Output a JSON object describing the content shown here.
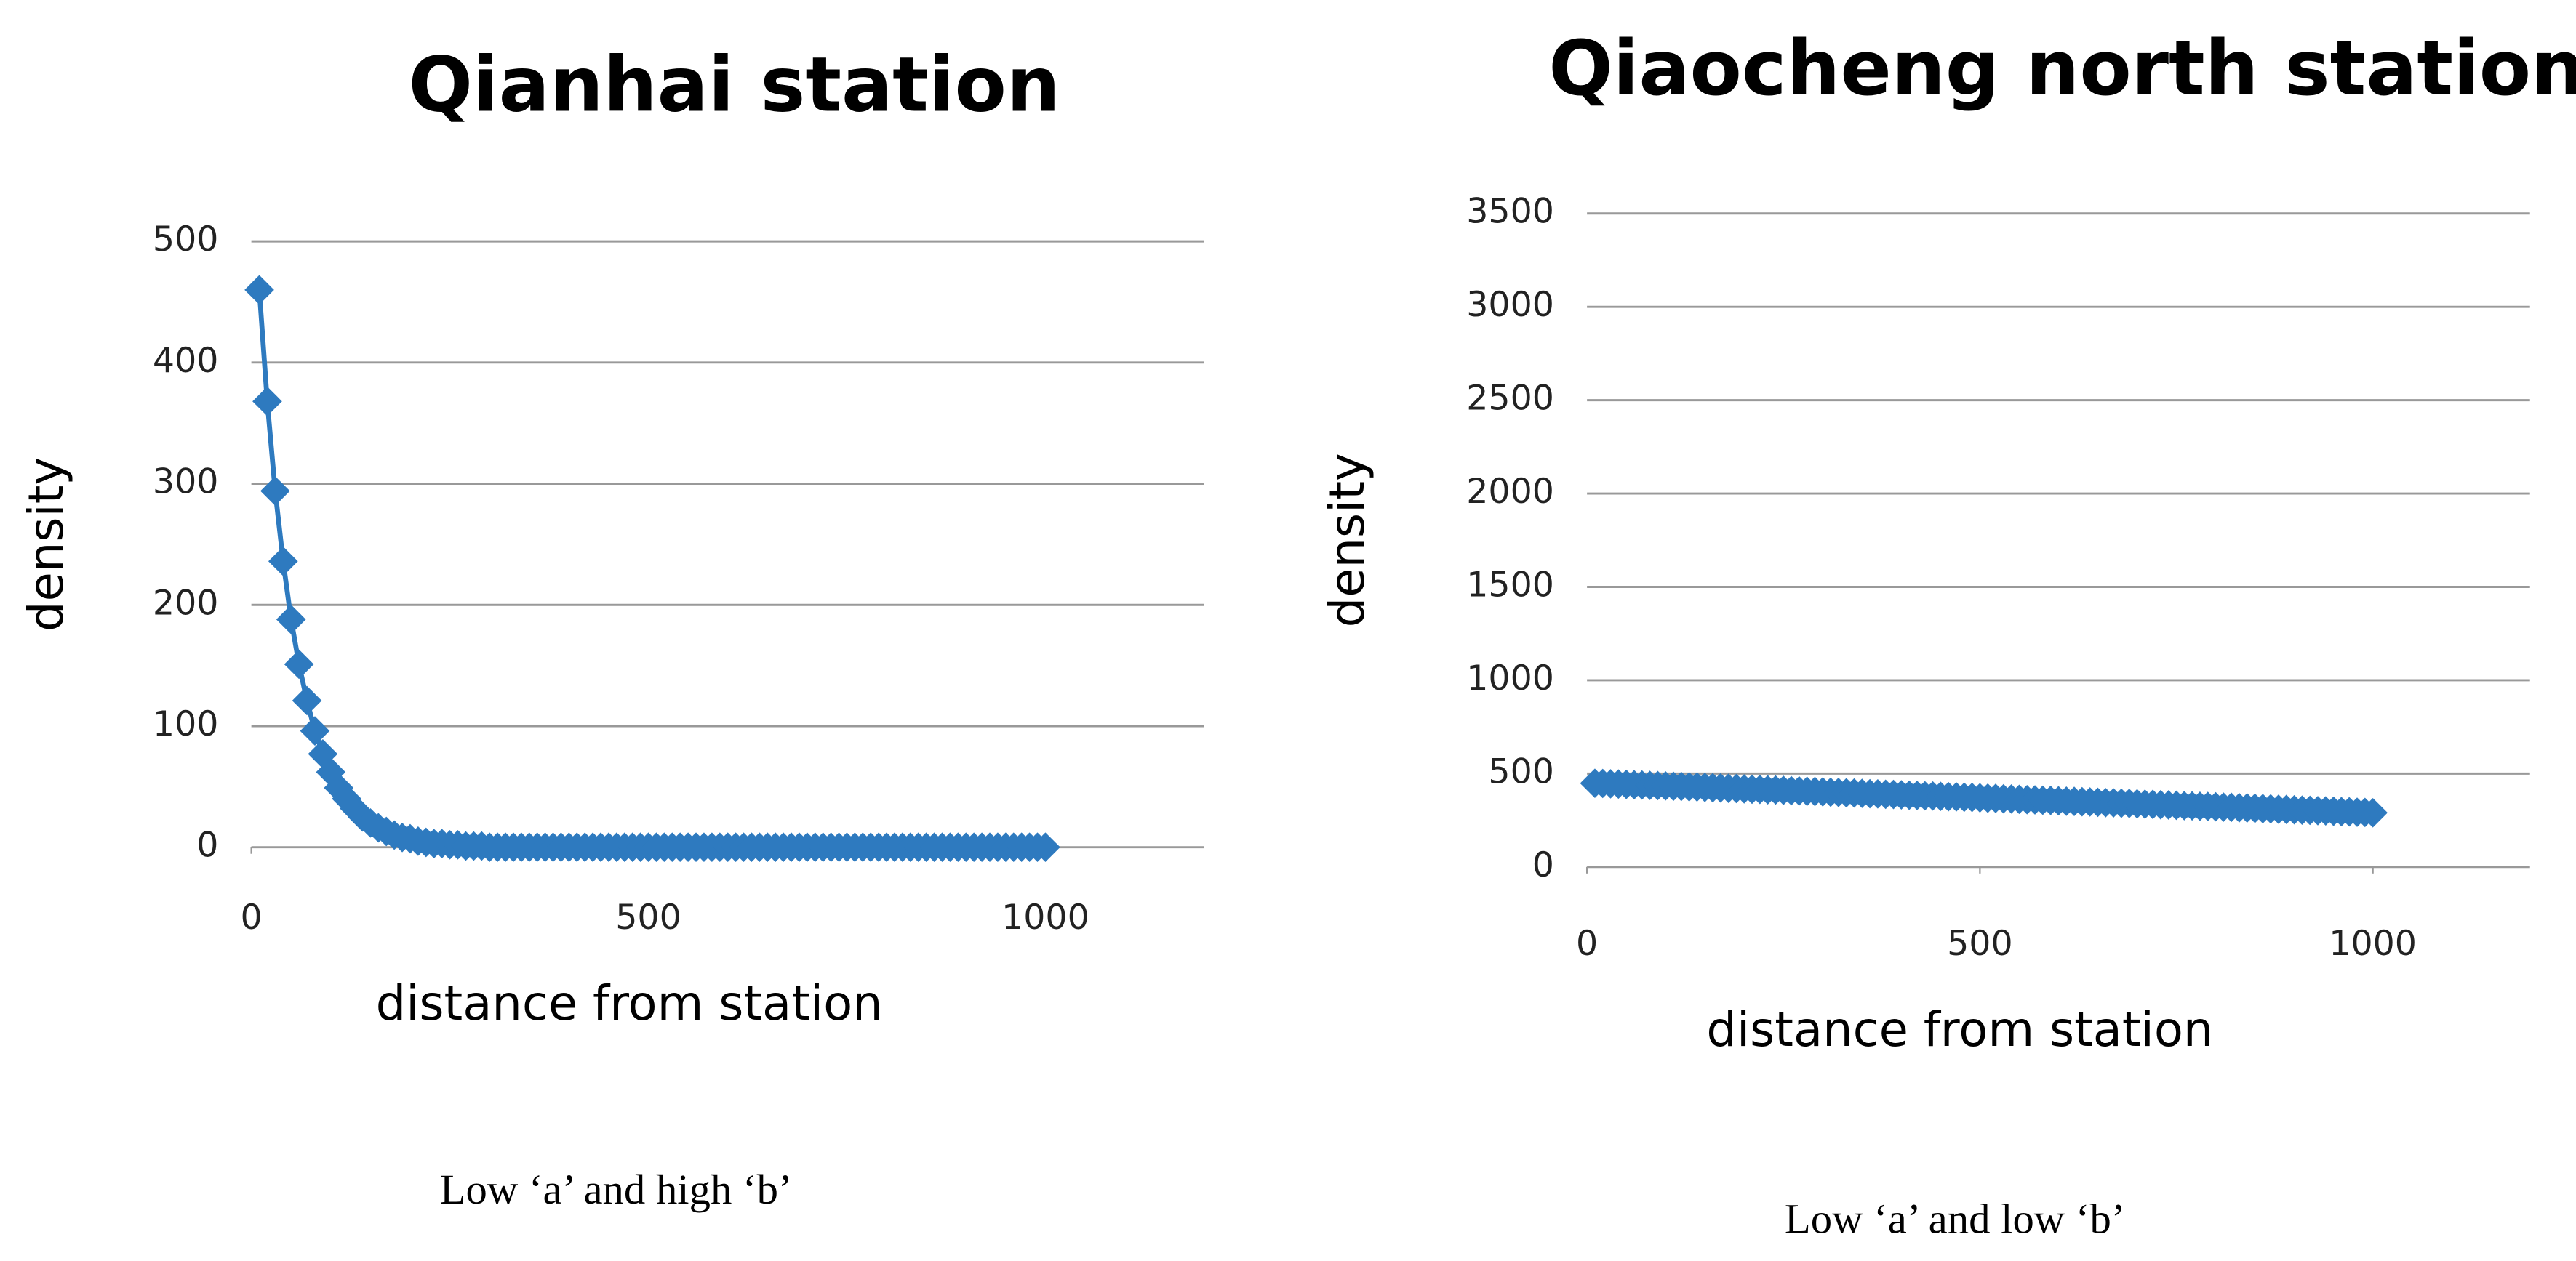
{
  "chart_data": [
    {
      "type": "line",
      "title": "Qianhai station",
      "xlabel": "distance from station",
      "ylabel": "density",
      "caption": "Low ‘a’ and high ‘b’",
      "color": "#2e7abf",
      "grid": true,
      "xlim": [
        0,
        1200
      ],
      "xticks": [
        0,
        500,
        1000
      ],
      "ylim": [
        0,
        500
      ],
      "yticks": [
        0,
        100,
        200,
        300,
        400,
        500
      ],
      "x": [
        10,
        20,
        30,
        40,
        50,
        60,
        70,
        80,
        90,
        100,
        110,
        120,
        130,
        140,
        150,
        160,
        170,
        180,
        190,
        200,
        210,
        220,
        230,
        240,
        250,
        260,
        270,
        280,
        290,
        300,
        310,
        320,
        330,
        340,
        350,
        360,
        370,
        380,
        390,
        400,
        410,
        420,
        430,
        440,
        450,
        460,
        470,
        480,
        490,
        500,
        510,
        520,
        530,
        540,
        550,
        560,
        570,
        580,
        590,
        600,
        610,
        620,
        630,
        640,
        650,
        660,
        670,
        680,
        690,
        700,
        710,
        720,
        730,
        740,
        750,
        760,
        770,
        780,
        790,
        800,
        810,
        820,
        830,
        840,
        850,
        860,
        870,
        880,
        890,
        900,
        910,
        920,
        930,
        940,
        950,
        960,
        970,
        980,
        990,
        1000
      ],
      "values": [
        460,
        368,
        294,
        236,
        188,
        151,
        121,
        96,
        77,
        62,
        49,
        40,
        32,
        25,
        20,
        16,
        13,
        10,
        8,
        7,
        5,
        4,
        3,
        3,
        2,
        2,
        1,
        1,
        1,
        0,
        0,
        0,
        0,
        0,
        0,
        0,
        0,
        0,
        0,
        0,
        0,
        0,
        0,
        0,
        0,
        0,
        0,
        0,
        0,
        0,
        0,
        0,
        0,
        0,
        0,
        0,
        0,
        0,
        0,
        0,
        0,
        0,
        0,
        0,
        0,
        0,
        0,
        0,
        0,
        0,
        0,
        0,
        0,
        0,
        0,
        0,
        0,
        0,
        0,
        0,
        0,
        0,
        0,
        0,
        0,
        0,
        0,
        0,
        0,
        0,
        0,
        0,
        0,
        0,
        0,
        0,
        0,
        0,
        0,
        0
      ]
    },
    {
      "type": "line",
      "title": "Qiaocheng north station",
      "xlabel": "distance from station",
      "ylabel": "density",
      "caption": "Low ‘a’ and low ‘b’",
      "color": "#2e7abf",
      "grid": true,
      "xlim": [
        0,
        1200
      ],
      "xticks": [
        0,
        500,
        1000
      ],
      "ylim": [
        0,
        3500
      ],
      "yticks": [
        0,
        500,
        1000,
        1500,
        2000,
        2500,
        3000,
        3500
      ],
      "x": [
        10,
        20,
        30,
        40,
        50,
        60,
        70,
        80,
        90,
        100,
        110,
        120,
        130,
        140,
        150,
        160,
        170,
        180,
        190,
        200,
        210,
        220,
        230,
        240,
        250,
        260,
        270,
        280,
        290,
        300,
        310,
        320,
        330,
        340,
        350,
        360,
        370,
        380,
        390,
        400,
        410,
        420,
        430,
        440,
        450,
        460,
        470,
        480,
        490,
        500,
        510,
        520,
        530,
        540,
        550,
        560,
        570,
        580,
        590,
        600,
        610,
        620,
        630,
        640,
        650,
        660,
        670,
        680,
        690,
        700,
        710,
        720,
        730,
        740,
        750,
        760,
        770,
        780,
        790,
        800,
        810,
        820,
        830,
        840,
        850,
        860,
        870,
        880,
        890,
        900,
        910,
        920,
        930,
        940,
        950,
        960,
        970,
        980,
        990,
        1000
      ],
      "values": [
        448,
        447,
        445,
        444,
        442,
        440,
        439,
        437,
        436,
        434,
        432,
        431,
        429,
        428,
        426,
        424,
        423,
        421,
        420,
        418,
        416,
        415,
        413,
        412,
        410,
        408,
        407,
        405,
        404,
        402,
        400,
        399,
        397,
        396,
        394,
        392,
        391,
        389,
        388,
        386,
        384,
        383,
        381,
        380,
        378,
        376,
        375,
        373,
        372,
        370,
        368,
        367,
        365,
        364,
        362,
        360,
        359,
        357,
        356,
        354,
        352,
        351,
        349,
        348,
        346,
        344,
        343,
        341,
        340,
        338,
        336,
        335,
        333,
        332,
        330,
        328,
        327,
        325,
        324,
        322,
        320,
        319,
        317,
        316,
        314,
        312,
        311,
        309,
        308,
        306,
        304,
        303,
        301,
        300,
        298,
        296,
        295,
        293,
        292,
        290
      ]
    }
  ]
}
